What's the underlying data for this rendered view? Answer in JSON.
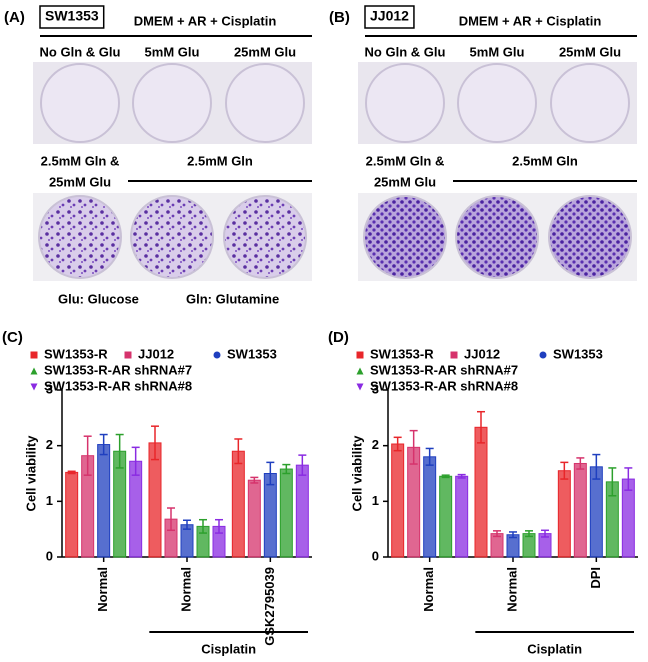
{
  "panels": [
    {
      "label": "(A)",
      "cell_line": "SW1353",
      "condition": "DMEM + AR + Cisplatin",
      "row1": [
        "No Gln & Glu",
        "5mM Glu",
        "25mM Glu"
      ],
      "row2_left": [
        "2.5mM Gln &",
        "25mM Glu"
      ],
      "row2_right": "2.5mM Gln",
      "footnote": [
        "Glu: Glucose",
        "Gln: Glutamine"
      ]
    },
    {
      "label": "(B)",
      "cell_line": "JJ012",
      "condition": "DMEM + AR + Cisplatin",
      "row1": [
        "No Gln & Glu",
        "5mM Glu",
        "25mM Glu"
      ],
      "row2_left": [
        "2.5mM Gln &",
        "25mM Glu"
      ],
      "row2_right": "2.5mM Gln"
    }
  ],
  "chart_data": [
    {
      "type": "bar",
      "label": "(C)",
      "y_label": "Cell viability",
      "categories": [
        "Normal",
        "Normal",
        "GSK2795039"
      ],
      "group_label": "Cisplatin",
      "ylim": [
        0,
        3
      ],
      "yticks": [
        0,
        1,
        2,
        3
      ],
      "series": [
        {
          "name": "SW1353-R",
          "color": "#e8262a",
          "marker": "square",
          "values": [
            1.52,
            2.05,
            1.9
          ],
          "errors": [
            0.02,
            0.3,
            0.22
          ]
        },
        {
          "name": "JJ012",
          "color": "#d6336c",
          "marker": "square",
          "values": [
            1.82,
            0.68,
            1.38
          ],
          "errors": [
            0.35,
            0.2,
            0.05
          ]
        },
        {
          "name": "SW1353",
          "color": "#1f3fbf",
          "marker": "circle",
          "values": [
            2.02,
            0.58,
            1.5
          ],
          "errors": [
            0.18,
            0.08,
            0.2
          ]
        },
        {
          "name": "SW1353-R-AR shRNA#7",
          "color": "#2ca02c",
          "marker": "triangle-up",
          "values": [
            1.9,
            0.55,
            1.58
          ],
          "errors": [
            0.3,
            0.12,
            0.08
          ]
        },
        {
          "name": "SW1353-R-AR shRNA#8",
          "color": "#8a2be2",
          "marker": "triangle-down",
          "values": [
            1.72,
            0.55,
            1.65
          ],
          "errors": [
            0.25,
            0.12,
            0.18
          ]
        }
      ]
    },
    {
      "type": "bar",
      "label": "(D)",
      "y_label": "Cell viability",
      "categories": [
        "Normal",
        "Normal",
        "DPI"
      ],
      "group_label": "Cisplatin",
      "ylim": [
        0,
        3
      ],
      "yticks": [
        0,
        1,
        2,
        3
      ],
      "series": [
        {
          "name": "SW1353-R",
          "color": "#e8262a",
          "marker": "square",
          "values": [
            2.03,
            2.33,
            1.55
          ],
          "errors": [
            0.12,
            0.28,
            0.15
          ]
        },
        {
          "name": "JJ012",
          "color": "#d6336c",
          "marker": "square",
          "values": [
            1.97,
            0.42,
            1.68
          ],
          "errors": [
            0.3,
            0.05,
            0.1
          ]
        },
        {
          "name": "SW1353",
          "color": "#1f3fbf",
          "marker": "circle",
          "values": [
            1.8,
            0.4,
            1.62
          ],
          "errors": [
            0.15,
            0.05,
            0.22
          ]
        },
        {
          "name": "SW1353-R-AR shRNA#7",
          "color": "#2ca02c",
          "marker": "triangle-up",
          "values": [
            1.45,
            0.42,
            1.35
          ],
          "errors": [
            0.02,
            0.05,
            0.25
          ]
        },
        {
          "name": "SW1353-R-AR shRNA#8",
          "color": "#8a2be2",
          "marker": "triangle-down",
          "values": [
            1.45,
            0.42,
            1.4
          ],
          "errors": [
            0.03,
            0.06,
            0.2
          ]
        }
      ]
    }
  ]
}
